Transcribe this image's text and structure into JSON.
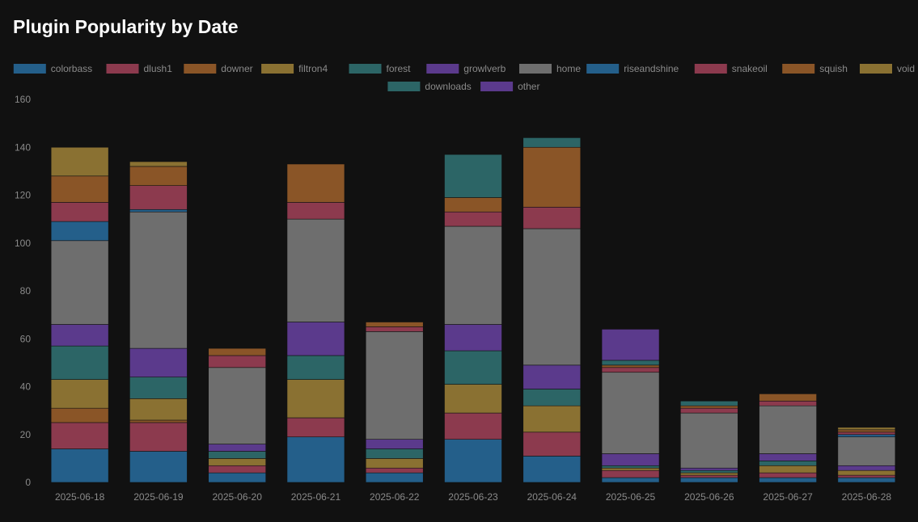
{
  "page": {
    "title": "Plugin Popularity by Date"
  },
  "chart_data": {
    "type": "bar",
    "stacked": true,
    "title": "",
    "xlabel": "",
    "ylabel": "",
    "ylim": [
      0,
      160
    ],
    "yticks": [
      0,
      20,
      40,
      60,
      80,
      100,
      120,
      140,
      160
    ],
    "grid": false,
    "legend_position": "top-center",
    "categories": [
      "2025-06-18",
      "2025-06-19",
      "2025-06-20",
      "2025-06-21",
      "2025-06-22",
      "2025-06-23",
      "2025-06-24",
      "2025-06-25",
      "2025-06-26",
      "2025-06-27",
      "2025-06-28"
    ],
    "series": [
      {
        "name": "colorbass",
        "color": "#245f8a",
        "values": [
          14,
          13,
          4,
          19,
          4,
          18,
          11,
          2,
          2,
          2,
          2
        ]
      },
      {
        "name": "dlush1",
        "color": "#8c3a4e",
        "values": [
          11,
          12,
          3,
          8,
          2,
          11,
          10,
          3,
          1,
          2,
          1
        ]
      },
      {
        "name": "downer",
        "color": "#8a5527",
        "values": [
          6,
          1,
          0,
          0,
          0,
          0,
          0,
          0,
          0,
          0,
          0
        ]
      },
      {
        "name": "filtron4",
        "color": "#8a7132",
        "values": [
          12,
          9,
          3,
          16,
          4,
          12,
          11,
          1,
          1,
          3,
          2
        ]
      },
      {
        "name": "forest",
        "color": "#2c6566",
        "values": [
          14,
          9,
          3,
          10,
          4,
          14,
          7,
          1,
          1,
          2,
          0
        ]
      },
      {
        "name": "growlverb",
        "color": "#5b3a8c",
        "values": [
          9,
          12,
          3,
          14,
          4,
          11,
          10,
          5,
          1,
          3,
          2
        ]
      },
      {
        "name": "home",
        "color": "#6e6e6e",
        "values": [
          35,
          57,
          32,
          43,
          45,
          41,
          57,
          34,
          23,
          20,
          12
        ]
      },
      {
        "name": "riseandshine",
        "color": "#245f8a",
        "values": [
          8,
          1,
          0,
          0,
          0,
          0,
          0,
          0,
          0,
          0,
          1
        ]
      },
      {
        "name": "snakeoil",
        "color": "#8c3a4e",
        "values": [
          8,
          10,
          5,
          7,
          2,
          6,
          9,
          2,
          2,
          2,
          1
        ]
      },
      {
        "name": "squish",
        "color": "#8a5527",
        "values": [
          11,
          8,
          3,
          16,
          2,
          6,
          25,
          1,
          1,
          3,
          1
        ]
      },
      {
        "name": "void",
        "color": "#8a7132",
        "values": [
          12,
          2,
          0,
          0,
          0,
          0,
          0,
          0,
          0,
          0,
          1
        ]
      },
      {
        "name": "downloads",
        "color": "#2c6566",
        "values": [
          0,
          0,
          0,
          0,
          0,
          18,
          4,
          2,
          2,
          0,
          0
        ]
      },
      {
        "name": "other",
        "color": "#5b3a8c",
        "values": [
          0,
          0,
          0,
          0,
          0,
          0,
          0,
          13,
          0,
          0,
          0
        ]
      }
    ]
  }
}
